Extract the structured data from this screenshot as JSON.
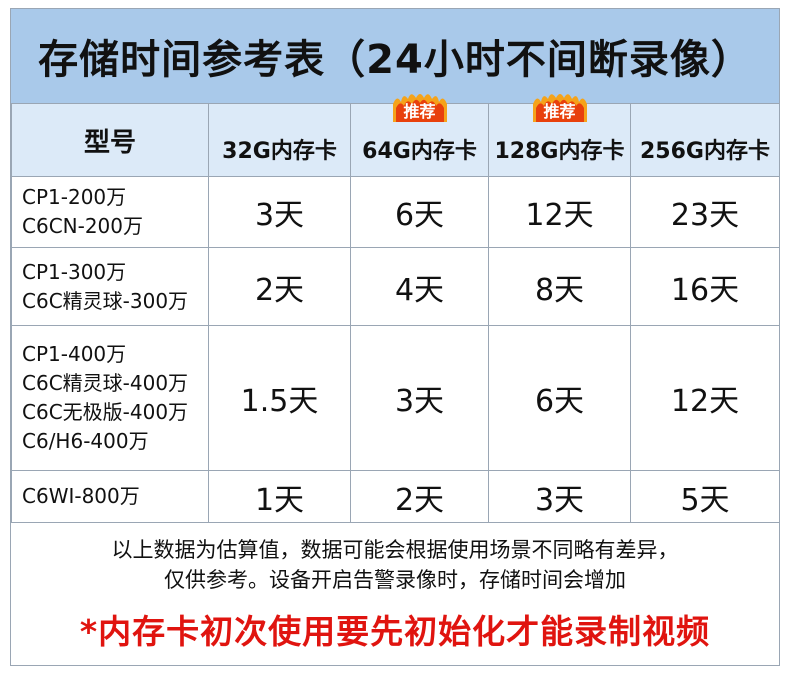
{
  "title": "存储时间参考表（24小时不间断录像）",
  "table": {
    "header_model": "型号",
    "columns": [
      {
        "label": "32G内存卡",
        "badge": ""
      },
      {
        "label": "64G内存卡",
        "badge": "推荐"
      },
      {
        "label": "128G内存卡",
        "badge": "推荐"
      },
      {
        "label": "256G内存卡",
        "badge": ""
      }
    ],
    "rows": [
      {
        "models": [
          "CP1-200万",
          "C6CN-200万"
        ],
        "values": [
          "3天",
          "6天",
          "12天",
          "23天"
        ]
      },
      {
        "models": [
          "CP1-300万",
          "C6C精灵球-300万"
        ],
        "values": [
          "2天",
          "4天",
          "8天",
          "16天"
        ]
      },
      {
        "models": [
          "CP1-400万",
          "C6C精灵球-400万",
          "C6C无极版-400万",
          "C6/H6-400万"
        ],
        "values": [
          "1.5天",
          "3天",
          "6天",
          "12天"
        ]
      },
      {
        "models": [
          "C6WI-800万"
        ],
        "values": [
          "1天",
          "2天",
          "3天",
          "5天"
        ]
      }
    ]
  },
  "notes": {
    "line1": "以上数据为估算值，数据可能会根据使用场景不同略有差异，",
    "line2": "仅供参考。设备开启告警录像时，存储时间会增加",
    "warning": "*内存卡初次使用要先初始化才能录制视频"
  },
  "colors": {
    "title_bg": "#a9c9ea",
    "header_bg": "#dceaf8",
    "badge": "#e8400c",
    "warning": "#e0140f"
  }
}
